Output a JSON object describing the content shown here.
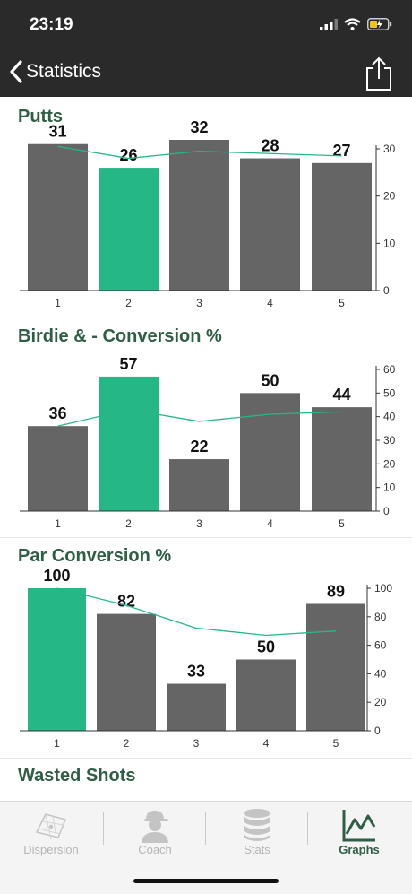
{
  "status_bar": {
    "time": "23:19"
  },
  "nav": {
    "back_label": "Statistics",
    "back_icon": "chevron-left-icon",
    "share_icon": "share-icon"
  },
  "colors": {
    "accent": "#25b886",
    "bar": "#656565",
    "title": "#2f5e46",
    "trend": "#25b886"
  },
  "sections": [
    {
      "title": "Putts"
    },
    {
      "title": "Birdie & - Conversion %"
    },
    {
      "title": "Par Conversion %"
    },
    {
      "title": "Wasted Shots"
    }
  ],
  "chart_data": [
    {
      "type": "bar",
      "title": "Putts",
      "categories": [
        "1",
        "2",
        "3",
        "4",
        "5"
      ],
      "values": [
        31,
        26,
        32,
        28,
        27
      ],
      "highlight_index": 1,
      "trend": [
        30.5,
        28,
        29.5,
        29,
        28.5
      ],
      "ylim": [
        0,
        30
      ],
      "yticks": [
        0,
        10,
        20,
        30
      ],
      "y_axis_side": "right"
    },
    {
      "type": "bar",
      "title": "Birdie & - Conversion %",
      "categories": [
        "1",
        "2",
        "3",
        "4",
        "5"
      ],
      "values": [
        36,
        57,
        22,
        50,
        44
      ],
      "highlight_index": 1,
      "trend": [
        36,
        43,
        38,
        41,
        42
      ],
      "ylim": [
        0,
        60
      ],
      "yticks": [
        0,
        10,
        20,
        30,
        40,
        50,
        60
      ],
      "y_axis_side": "right"
    },
    {
      "type": "bar",
      "title": "Par Conversion %",
      "categories": [
        "1",
        "2",
        "3",
        "4",
        "5"
      ],
      "values": [
        100,
        82,
        33,
        50,
        89
      ],
      "highlight_index": 0,
      "trend": [
        100,
        88,
        72,
        67,
        70
      ],
      "ylim": [
        0,
        100
      ],
      "yticks": [
        0,
        20,
        40,
        60,
        80,
        100
      ],
      "y_axis_side": "right"
    }
  ],
  "tabs": [
    {
      "label": "Dispersion",
      "icon": "dispersion-icon",
      "active": false
    },
    {
      "label": "Coach",
      "icon": "coach-icon",
      "active": false
    },
    {
      "label": "Stats",
      "icon": "database-icon",
      "active": false
    },
    {
      "label": "Graphs",
      "icon": "line-graph-icon",
      "active": true
    }
  ]
}
